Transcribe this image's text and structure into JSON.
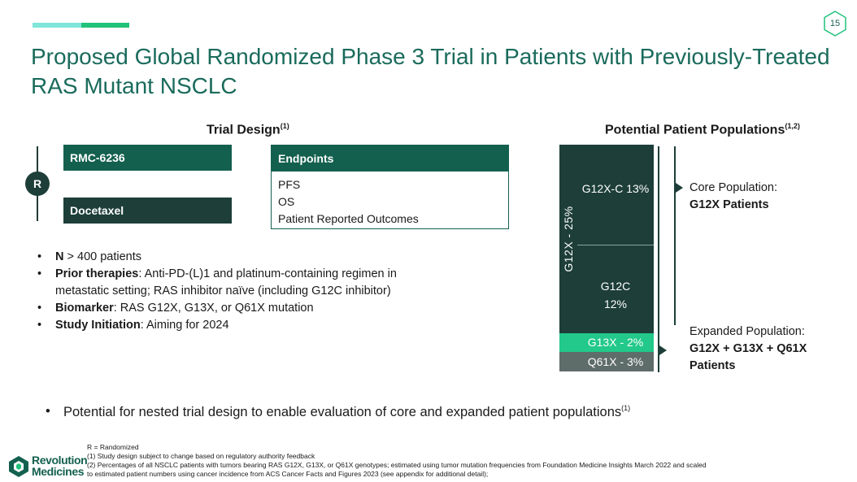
{
  "page_number": "15",
  "title": "Proposed Global Randomized Phase 3 Trial in Patients with Previously-Treated RAS Mutant NSCLC",
  "trial_design": {
    "heading": "Trial Design",
    "heading_sup": "(1)",
    "randomized_label": "R",
    "arms": [
      "RMC-6236",
      "Docetaxel"
    ],
    "endpoints": {
      "header": "Endpoints",
      "items": [
        "PFS",
        "OS",
        "Patient Reported Outcomes"
      ]
    }
  },
  "bullets": [
    {
      "label": "N",
      "text": " > 400 patients"
    },
    {
      "label": "Prior therapies",
      "text": ": Anti-PD-(L)1 and platinum-containing regimen in metastatic setting; RAS inhibitor naïve (including G12C inhibitor)"
    },
    {
      "label": "Biomarker",
      "text": ": RAS G12X, G13X, or Q61X mutation"
    },
    {
      "label": "Study Initiation",
      "text": ": Aiming for 2024"
    }
  ],
  "populations": {
    "heading": "Potential Patient Populations",
    "heading_sup": "(1,2)",
    "side_label": "G12X - 25%",
    "segments": {
      "g12xc": "G12X-C  13%",
      "g12c_name": "G12C",
      "g12c_pct": "12%",
      "g13x": "G13X - 2%",
      "q61x": "Q61X - 3%"
    },
    "core": {
      "label": "Core Population:",
      "value": "G12X Patients"
    },
    "expanded": {
      "label": "Expanded Population:",
      "value_line1": "G12X + G13X + Q61X",
      "value_line2": "Patients"
    }
  },
  "nested_note": "Potential for nested trial design to enable evaluation of core and expanded patient populations",
  "nested_note_sup": "(1)",
  "logo": {
    "line1": "Revolution",
    "line2": "Medicines"
  },
  "footnotes": [
    "R = Randomized",
    "(1) Study design subject to change based on regulatory authority feedback",
    "(2) Percentages of all NSCLC patients with tumors bearing RAS G12X, G13X, or Q61X genotypes; estimated using tumor mutation frequencies from Foundation Medicine Insights March 2022 and scaled",
    "to estimated patient numbers using cancer incidence from ACS Cancer Facts and Figures 2023 (see appendix for additional detail);"
  ],
  "colors": {
    "title": "#1a6b5c",
    "dark_teal": "#1d3e39",
    "teal": "#14604f",
    "green": "#22c98a",
    "gray": "#5e6c6a"
  }
}
